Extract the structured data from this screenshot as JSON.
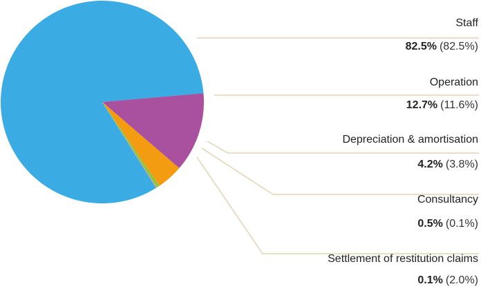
{
  "chart_data": {
    "type": "pie",
    "categories": [
      "Staff",
      "Operation",
      "Depreciation & amortisation",
      "Consultancy",
      "Settlement of restitution claims"
    ],
    "values": [
      82.5,
      12.7,
      4.2,
      0.5,
      0.1
    ],
    "value_labels": [
      "82.5%",
      "12.7%",
      "4.2%",
      "0.5%",
      "0.1%"
    ],
    "prior_value_labels": [
      "(82.5%)",
      "(11.6%)",
      "(3.8%)",
      "(0.1%)",
      "(2.0%)"
    ],
    "colors": [
      "#3aace3",
      "#a9509e",
      "#f39c12",
      "#8dc63f",
      "#e58fb6"
    ]
  }
}
